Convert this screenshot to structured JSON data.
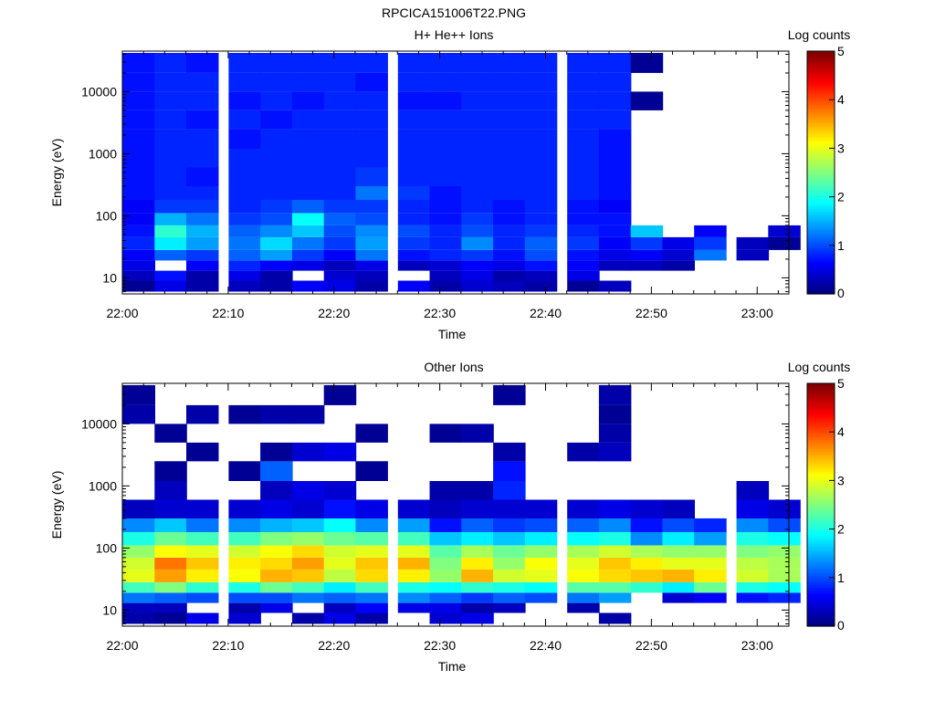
{
  "figure": {
    "title": "RPCICA151006T22.PNG"
  },
  "panels": [
    {
      "title": "H+ He++ Ions",
      "ylabel": "Energy (eV)",
      "xlabel": "Time",
      "colorbar": {
        "label": "Log counts",
        "ticks": [
          "0",
          "1",
          "2",
          "3",
          "4",
          "5"
        ]
      }
    },
    {
      "title": "Other Ions",
      "ylabel": "Energy (eV)",
      "xlabel": "Time",
      "colorbar": {
        "label": "Log counts",
        "ticks": [
          "0",
          "1",
          "2",
          "3",
          "4",
          "5"
        ]
      }
    }
  ],
  "chart_data": [
    {
      "type": "heatmap",
      "title": "H+ He++ Ions",
      "xlabel": "Time",
      "ylabel": "Energy (eV)",
      "yscale": "log",
      "ylim": [
        5.5,
        45000
      ],
      "xlim": [
        "22:00",
        "23:03"
      ],
      "x_ticks": [
        "22:00",
        "22:10",
        "22:20",
        "22:30",
        "22:40",
        "22:50",
        "23:00"
      ],
      "y_ticks": [
        "10",
        "100",
        "1000",
        "10000"
      ],
      "colorbar_label": "Log counts",
      "color_range": [
        0,
        5
      ],
      "colormap": "jet",
      "time_bins": [
        "22:00",
        "22:03",
        "22:06",
        "22:10",
        "22:13",
        "22:16",
        "22:19",
        "22:22",
        "22:26",
        "22:29",
        "22:32",
        "22:35",
        "22:38",
        "22:42",
        "22:45",
        "22:48",
        "22:51",
        "22:54",
        "22:58",
        "23:01"
      ],
      "energy_bands_eV": [
        [
          6,
          9
        ],
        [
          9,
          13
        ],
        [
          13,
          19
        ],
        [
          19,
          28
        ],
        [
          28,
          45
        ],
        [
          45,
          70
        ],
        [
          70,
          110
        ],
        [
          110,
          180
        ],
        [
          180,
          300
        ],
        [
          300,
          600
        ],
        [
          600,
          1200
        ],
        [
          1200,
          2500
        ],
        [
          2500,
          5000
        ],
        [
          5000,
          10000
        ],
        [
          10000,
          20000
        ],
        [
          20000,
          42000
        ]
      ],
      "log_counts": [
        [
          0.1,
          0.5,
          0.2,
          0.3,
          0.2,
          0.6,
          0.5,
          0.2,
          0.6,
          0.2,
          0.4,
          0.3,
          0.2,
          0.1,
          0.3,
          null,
          null,
          null,
          null,
          null
        ],
        [
          0.3,
          0.7,
          0.2,
          0.5,
          0.2,
          null,
          0.4,
          0.3,
          null,
          0.3,
          0.5,
          0.2,
          0.3,
          0.5,
          null,
          null,
          null,
          null,
          null,
          null
        ],
        [
          0.5,
          null,
          0.6,
          0.8,
          0.6,
          0.5,
          0.3,
          0.5,
          0.3,
          0.4,
          0.6,
          0.5,
          0.7,
          0.6,
          0.3,
          0.3,
          0.2,
          null,
          null,
          null
        ],
        [
          0.6,
          1.1,
          0.9,
          1.1,
          1.4,
          0.9,
          0.6,
          1.2,
          0.7,
          0.8,
          0.9,
          0.7,
          1.0,
          0.7,
          0.5,
          0.6,
          0.4,
          1.2,
          0.3,
          null
        ],
        [
          0.8,
          1.8,
          1.4,
          1.2,
          1.7,
          1.2,
          0.9,
          1.4,
          0.9,
          0.8,
          1.3,
          0.8,
          1.1,
          0.9,
          0.6,
          0.9,
          0.5,
          0.9,
          0.3,
          0.1
        ],
        [
          0.7,
          2.1,
          1.5,
          1.1,
          1.3,
          1.6,
          1.0,
          1.3,
          1.0,
          0.8,
          1.0,
          0.8,
          0.9,
          0.8,
          0.7,
          1.6,
          null,
          0.6,
          null,
          0.4
        ],
        [
          0.6,
          1.5,
          1.2,
          0.9,
          1.0,
          1.9,
          1.1,
          1.0,
          0.8,
          0.7,
          0.9,
          0.7,
          0.8,
          0.7,
          0.7,
          null,
          null,
          null,
          null,
          null
        ],
        [
          0.6,
          0.9,
          0.9,
          0.8,
          0.9,
          1.1,
          0.9,
          0.9,
          0.8,
          0.7,
          0.8,
          0.7,
          0.8,
          0.7,
          0.6,
          null,
          null,
          null,
          null,
          null
        ],
        [
          0.7,
          0.8,
          0.8,
          0.8,
          0.8,
          0.8,
          0.8,
          1.2,
          0.9,
          0.7,
          0.8,
          0.8,
          0.8,
          0.8,
          0.7,
          null,
          null,
          null,
          null,
          null
        ],
        [
          0.7,
          0.8,
          0.7,
          0.8,
          0.8,
          0.8,
          0.8,
          0.9,
          0.8,
          0.8,
          0.8,
          0.8,
          0.8,
          0.8,
          0.7,
          null,
          null,
          null,
          null,
          null
        ],
        [
          0.7,
          0.8,
          0.8,
          0.8,
          0.8,
          0.8,
          0.8,
          0.8,
          0.8,
          0.8,
          0.8,
          0.8,
          0.8,
          0.8,
          0.7,
          null,
          null,
          null,
          null,
          null
        ],
        [
          0.7,
          0.8,
          0.8,
          0.7,
          0.8,
          0.8,
          0.8,
          0.8,
          0.8,
          0.8,
          0.8,
          0.8,
          0.8,
          0.8,
          0.7,
          null,
          null,
          null,
          null,
          null
        ],
        [
          0.7,
          0.8,
          0.7,
          0.8,
          0.7,
          0.8,
          0.8,
          0.8,
          0.8,
          0.8,
          0.8,
          0.8,
          0.8,
          0.8,
          0.8,
          null,
          null,
          null,
          null,
          null
        ],
        [
          0.7,
          0.8,
          0.8,
          0.7,
          0.8,
          0.7,
          0.8,
          0.8,
          0.7,
          0.7,
          0.8,
          0.8,
          0.8,
          0.8,
          0.8,
          0.1,
          null,
          null,
          null,
          null
        ],
        [
          0.7,
          0.8,
          0.8,
          0.8,
          0.8,
          0.8,
          0.8,
          0.7,
          0.8,
          0.8,
          0.8,
          0.8,
          0.8,
          0.8,
          0.8,
          null,
          null,
          null,
          null,
          null
        ],
        [
          0.7,
          0.8,
          0.7,
          0.8,
          0.8,
          0.8,
          0.8,
          0.8,
          0.8,
          0.8,
          0.8,
          0.8,
          0.8,
          0.8,
          0.8,
          0.1,
          null,
          null,
          null,
          null
        ]
      ]
    },
    {
      "type": "heatmap",
      "title": "Other Ions",
      "xlabel": "Time",
      "ylabel": "Energy (eV)",
      "yscale": "log",
      "ylim": [
        5.5,
        45000
      ],
      "xlim": [
        "22:00",
        "23:03"
      ],
      "x_ticks": [
        "22:00",
        "22:10",
        "22:20",
        "22:30",
        "22:40",
        "22:50",
        "23:00"
      ],
      "y_ticks": [
        "10",
        "100",
        "1000",
        "10000"
      ],
      "colorbar_label": "Log counts",
      "color_range": [
        0,
        5
      ],
      "colormap": "jet",
      "time_bins": [
        "22:00",
        "22:03",
        "22:06",
        "22:10",
        "22:13",
        "22:16",
        "22:19",
        "22:22",
        "22:26",
        "22:29",
        "22:32",
        "22:35",
        "22:38",
        "22:42",
        "22:45",
        "22:48",
        "22:51",
        "22:54",
        "22:58",
        "23:01"
      ],
      "energy_bands_eV": [
        [
          6,
          9
        ],
        [
          9,
          13
        ],
        [
          13,
          19
        ],
        [
          19,
          28
        ],
        [
          28,
          45
        ],
        [
          45,
          70
        ],
        [
          70,
          110
        ],
        [
          110,
          180
        ],
        [
          180,
          300
        ],
        [
          300,
          600
        ],
        [
          600,
          1200
        ],
        [
          1200,
          2500
        ],
        [
          2500,
          5000
        ],
        [
          5000,
          10000
        ],
        [
          10000,
          20000
        ],
        [
          20000,
          42000
        ]
      ],
      "log_counts": [
        [
          0.2,
          0.1,
          0.5,
          0.4,
          null,
          0.2,
          0.5,
          0.2,
          null,
          0.4,
          0.5,
          null,
          null,
          null,
          0.2,
          null,
          null,
          null,
          null,
          null
        ],
        [
          0.3,
          0.3,
          null,
          0.2,
          0.5,
          null,
          0.3,
          0.6,
          0.5,
          0.5,
          0.2,
          0.3,
          null,
          0.2,
          null,
          null,
          null,
          null,
          null,
          null
        ],
        [
          1.2,
          1.1,
          1.0,
          1.0,
          1.0,
          1.2,
          1.1,
          1.2,
          1.3,
          1.1,
          0.9,
          1.1,
          1.0,
          1.2,
          1.4,
          null,
          0.4,
          0.6,
          0.7,
          0.8
        ],
        [
          2.2,
          2.5,
          2.1,
          2.0,
          2.4,
          2.2,
          1.8,
          2.2,
          2.0,
          1.9,
          2.1,
          2.0,
          1.9,
          2.3,
          2.3,
          2.1,
          1.8,
          2.4,
          2.0,
          1.9
        ],
        [
          3.0,
          3.6,
          3.2,
          3.1,
          3.5,
          3.4,
          2.8,
          3.3,
          3.2,
          2.6,
          3.5,
          2.9,
          3.0,
          3.1,
          3.3,
          3.4,
          3.5,
          3.2,
          2.9,
          2.7
        ],
        [
          2.9,
          3.8,
          3.4,
          3.2,
          3.3,
          3.6,
          3.0,
          3.4,
          3.5,
          2.5,
          3.2,
          2.6,
          3.1,
          3.0,
          3.4,
          3.2,
          3.0,
          3.0,
          2.8,
          2.7
        ],
        [
          2.6,
          3.1,
          3.0,
          2.9,
          3.1,
          3.3,
          2.9,
          3.0,
          3.0,
          2.3,
          2.7,
          2.4,
          2.6,
          2.7,
          2.9,
          2.7,
          2.6,
          2.6,
          2.5,
          2.6
        ],
        [
          2.0,
          2.4,
          2.2,
          2.2,
          2.5,
          2.6,
          2.4,
          2.3,
          2.2,
          1.6,
          1.8,
          1.6,
          1.8,
          1.9,
          2.0,
          1.3,
          1.8,
          1.4,
          2.0,
          1.9
        ],
        [
          1.3,
          1.6,
          1.2,
          1.3,
          1.5,
          1.6,
          1.9,
          1.3,
          1.4,
          0.7,
          1.1,
          0.9,
          1.0,
          1.1,
          1.3,
          0.7,
          1.0,
          0.8,
          1.3,
          1.0
        ],
        [
          0.3,
          0.4,
          0.4,
          0.4,
          0.5,
          0.4,
          0.7,
          0.5,
          0.4,
          0.3,
          0.4,
          0.4,
          0.4,
          0.4,
          0.5,
          0.4,
          0.3,
          null,
          0.5,
          0.4
        ],
        [
          null,
          0.3,
          null,
          null,
          0.3,
          0.5,
          0.4,
          null,
          null,
          0.2,
          0.2,
          0.8,
          null,
          null,
          null,
          null,
          null,
          null,
          0.3,
          null
        ],
        [
          null,
          0.1,
          null,
          0.1,
          1.1,
          null,
          null,
          0.1,
          null,
          null,
          null,
          0.7,
          null,
          null,
          null,
          null,
          null,
          null,
          null,
          null
        ],
        [
          null,
          null,
          0.1,
          null,
          0.1,
          0.4,
          0.5,
          null,
          null,
          null,
          null,
          0.2,
          null,
          0.2,
          0.3,
          null,
          null,
          null,
          null,
          null
        ],
        [
          null,
          0.1,
          null,
          null,
          null,
          null,
          null,
          0.1,
          null,
          0.1,
          0.2,
          null,
          null,
          null,
          0.2,
          null,
          null,
          null,
          null,
          null
        ],
        [
          0.2,
          null,
          0.2,
          0.1,
          0.2,
          0.2,
          null,
          null,
          null,
          null,
          null,
          null,
          null,
          null,
          0.1,
          null,
          null,
          null,
          null,
          null
        ],
        [
          0.1,
          null,
          null,
          null,
          null,
          null,
          0.1,
          null,
          null,
          null,
          null,
          0.1,
          null,
          null,
          0.2,
          null,
          null,
          null,
          null,
          null
        ]
      ]
    }
  ]
}
